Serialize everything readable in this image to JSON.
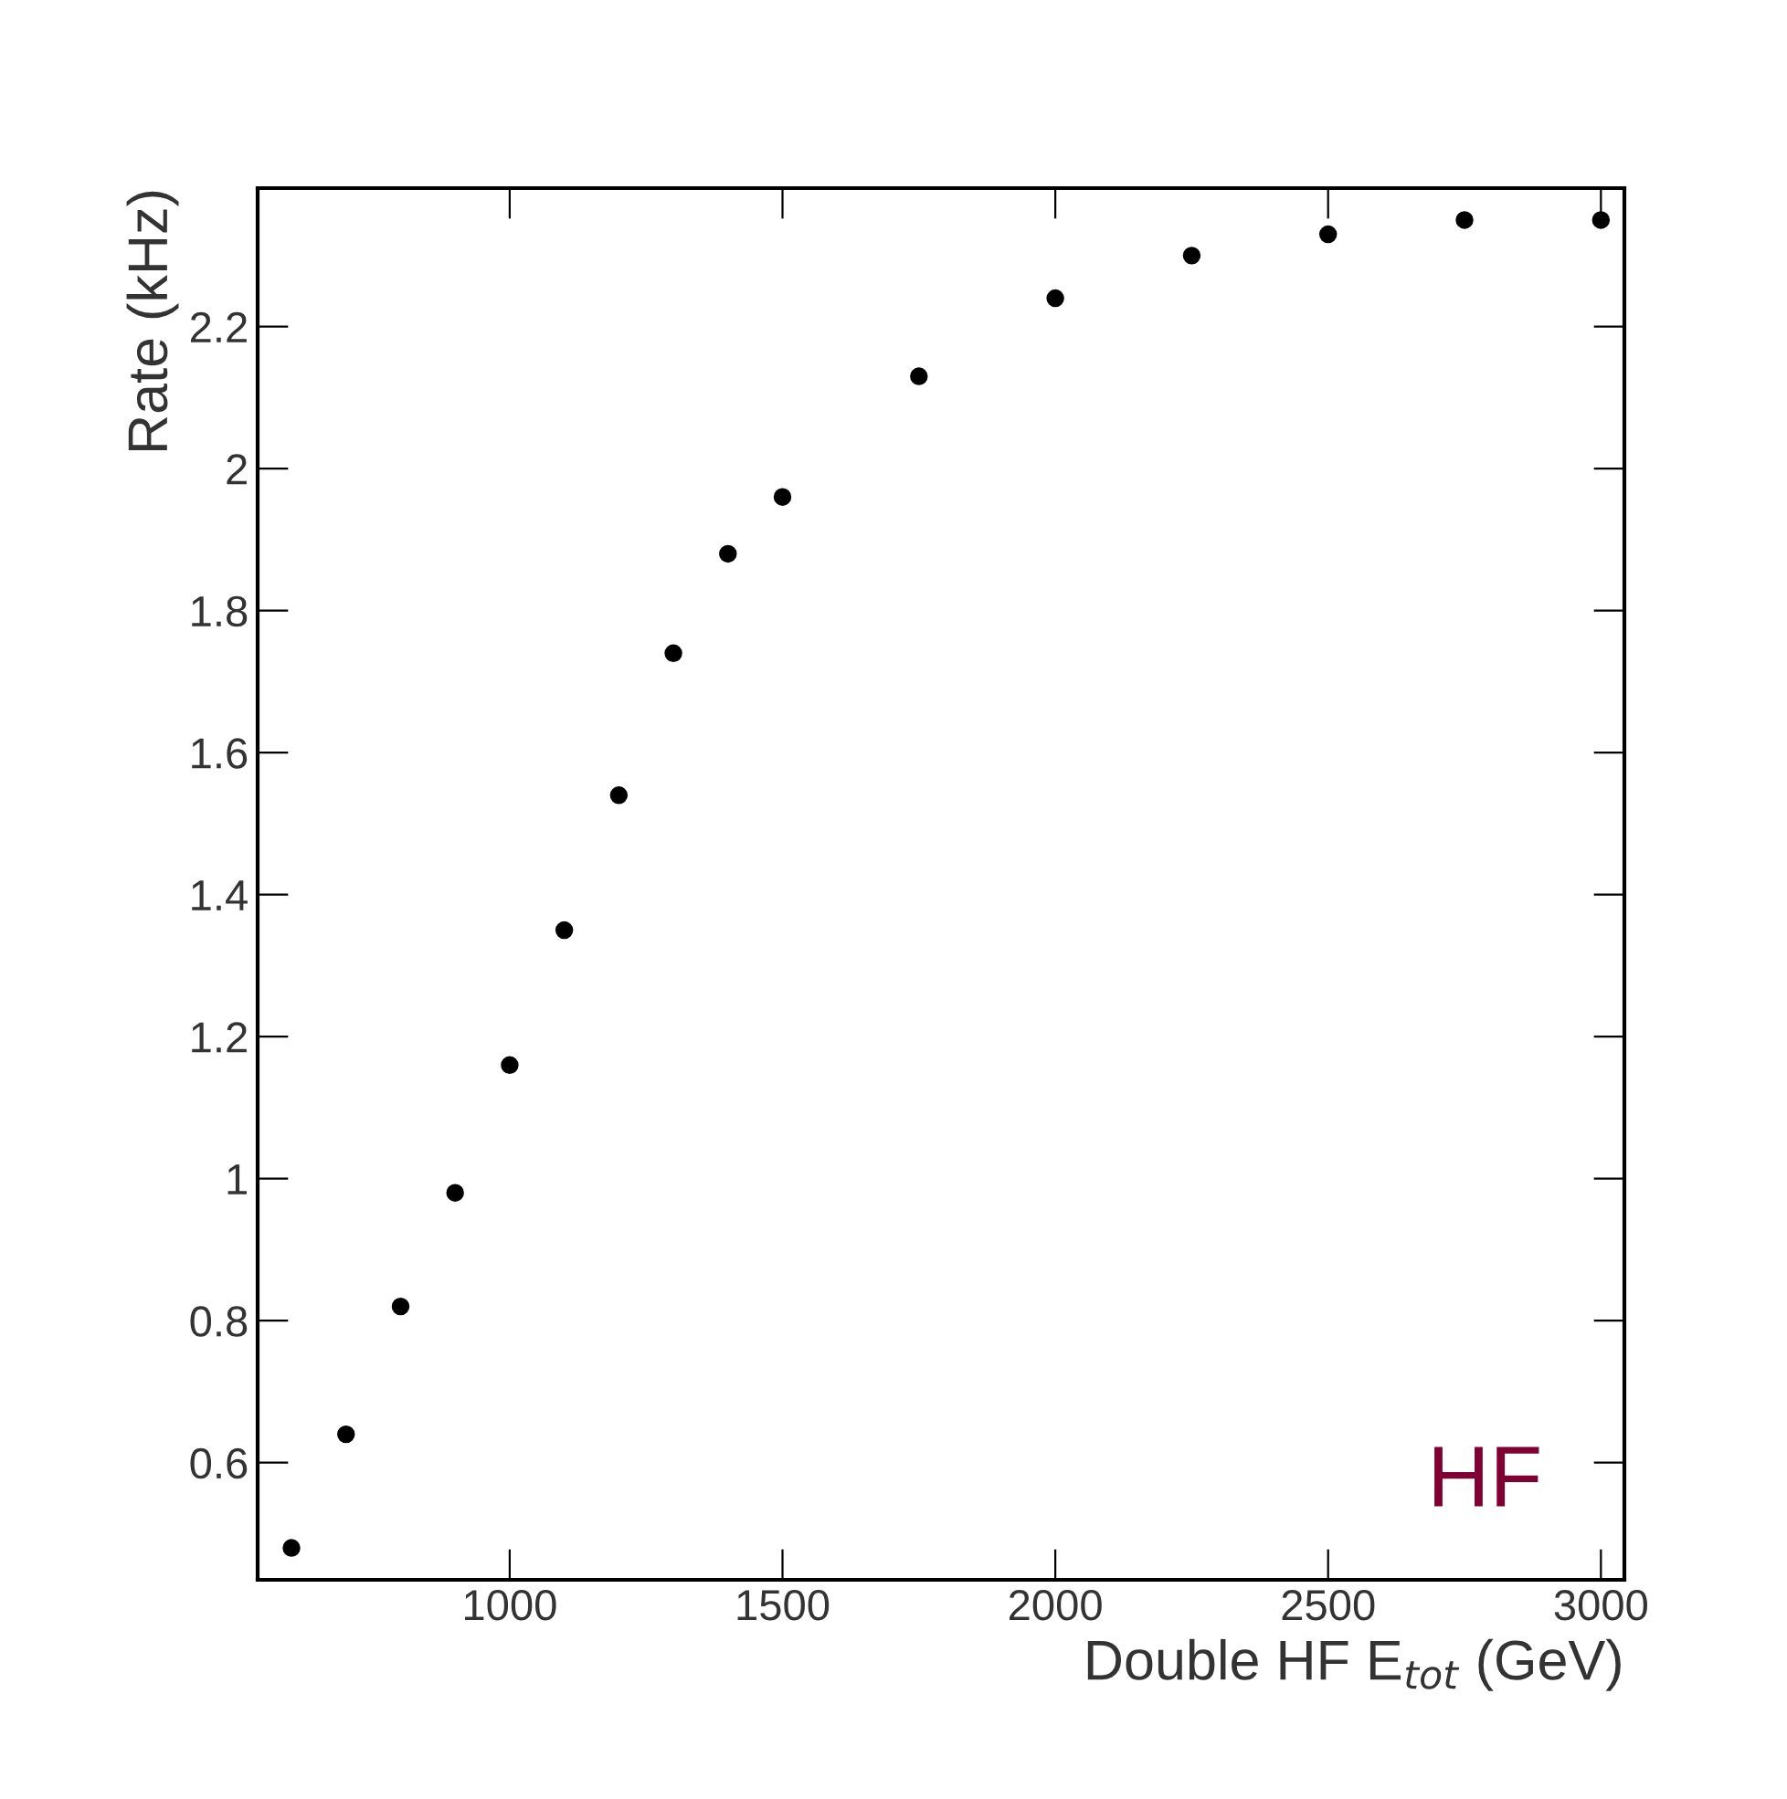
{
  "chart_data": {
    "type": "scatter",
    "xlabel": "Double HF E$_{tot}$ (GeV)",
    "ylabel": "Rate (kHz)",
    "annotations": [
      "HF"
    ],
    "x": [
      600,
      700,
      800,
      900,
      1000,
      1100,
      1200,
      1300,
      1400,
      1500,
      1750,
      2000,
      2250,
      2500,
      2750,
      3000
    ],
    "series": [
      {
        "color": "#000000",
        "values": [
          0.48,
          0.64,
          0.82,
          0.98,
          1.16,
          1.35,
          1.54,
          1.74,
          1.88,
          1.96,
          2.13,
          2.24,
          2.3,
          2.33,
          2.35,
          2.35
        ]
      }
    ],
    "marker": "circle",
    "grid": false,
    "legend": false,
    "xlim": [
      538,
      3043
    ],
    "ylim": [
      0.435,
      2.395
    ],
    "xticks": [
      1000,
      1500,
      2000,
      2500,
      3000
    ],
    "yticks": [
      0.6,
      0.8,
      1,
      1.2,
      1.4,
      1.6,
      1.8,
      2,
      2.2
    ]
  }
}
